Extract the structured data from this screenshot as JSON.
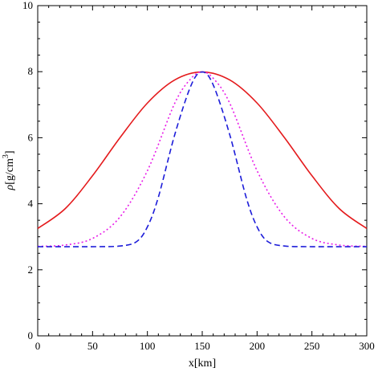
{
  "chart_data": {
    "type": "line",
    "xlabel": "x[km]",
    "ylabel": {
      "rho": "ρ",
      "unit_main": "[g/cm",
      "unit_sup": "3",
      "unit_close": "]"
    },
    "xlim": [
      0,
      300
    ],
    "ylim": [
      0,
      10
    ],
    "x_ticks": [
      0,
      50,
      100,
      150,
      200,
      250,
      300
    ],
    "y_ticks": [
      0,
      2,
      4,
      6,
      8,
      10
    ],
    "grid": false,
    "legend": "none",
    "series": [
      {
        "color": "#e41a1c",
        "style": "solid",
        "x": [
          0,
          25,
          50,
          75,
          100,
          125,
          150,
          175,
          200,
          225,
          250,
          275,
          300
        ],
        "y": [
          3.25,
          3.85,
          4.85,
          6.0,
          7.05,
          7.75,
          7.99,
          7.75,
          7.05,
          6.0,
          4.85,
          3.85,
          3.25
        ]
      },
      {
        "color": "#e81ce8",
        "style": "dotted",
        "x": [
          0,
          25,
          50,
          75,
          100,
          125,
          140,
          150,
          160,
          175,
          200,
          225,
          250,
          275,
          300
        ],
        "y": [
          2.71,
          2.75,
          2.95,
          3.6,
          5.0,
          7.05,
          7.8,
          7.99,
          7.8,
          7.05,
          5.0,
          3.6,
          2.95,
          2.75,
          2.71
        ]
      },
      {
        "color": "#1c1cd9",
        "style": "dashed",
        "x": [
          0,
          25,
          50,
          75,
          90,
          100,
          110,
          125,
          140,
          150,
          160,
          175,
          190,
          200,
          210,
          225,
          250,
          275,
          300
        ],
        "y": [
          2.7,
          2.7,
          2.7,
          2.72,
          2.85,
          3.3,
          4.2,
          6.1,
          7.6,
          7.99,
          7.6,
          6.1,
          4.2,
          3.3,
          2.85,
          2.72,
          2.7,
          2.7,
          2.7
        ]
      }
    ]
  }
}
